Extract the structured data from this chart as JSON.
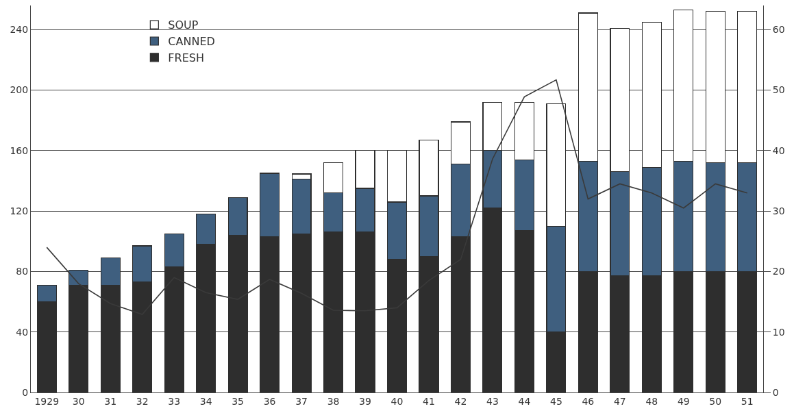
{
  "chart_data": {
    "type": "bar",
    "stacked": true,
    "categories": [
      "1929",
      "30",
      "31",
      "32",
      "33",
      "34",
      "35",
      "36",
      "37",
      "38",
      "39",
      "40",
      "41",
      "42",
      "43",
      "44",
      "45",
      "46",
      "47",
      "48",
      "49",
      "50",
      "51"
    ],
    "series": [
      {
        "name": "FRESH",
        "color": "#2e2e2e",
        "values": [
          60,
          71,
          71,
          73,
          83,
          98,
          104,
          103,
          105,
          106,
          106,
          88,
          90,
          103,
          122,
          107,
          40,
          80,
          77,
          77,
          80,
          80,
          80
        ]
      },
      {
        "name": "CANNED",
        "color": "#3f5f7f",
        "values": [
          11,
          10,
          18,
          24,
          22,
          20,
          25,
          42,
          36,
          26,
          29,
          38,
          40,
          48,
          38,
          47,
          70,
          73,
          69,
          72,
          73,
          72,
          72
        ]
      },
      {
        "name": "SOUP",
        "color": "#ffffff",
        "values": [
          null,
          null,
          null,
          null,
          null,
          null,
          null,
          null,
          3.5,
          20,
          25,
          34,
          37,
          28,
          32,
          38,
          81,
          98,
          95,
          96,
          100,
          100,
          100
        ]
      },
      {
        "type": "line",
        "axis": "y2",
        "color": "#3a3a3a",
        "values": [
          24,
          18,
          14.7,
          12.9,
          19,
          16.5,
          15.4,
          18.7,
          16.4,
          13.6,
          13.5,
          14,
          18.5,
          22,
          38.6,
          48.9,
          51.7,
          32,
          34.5,
          33,
          30.5,
          34.5,
          33
        ]
      }
    ],
    "ylim": [
      0,
      256
    ],
    "yticks": [
      0,
      40,
      80,
      120,
      160,
      200,
      240
    ],
    "y2lim": [
      0,
      64
    ],
    "y2ticks": [
      0,
      10,
      20,
      30,
      40,
      50,
      60
    ],
    "grid": "y",
    "legend": "top left"
  }
}
